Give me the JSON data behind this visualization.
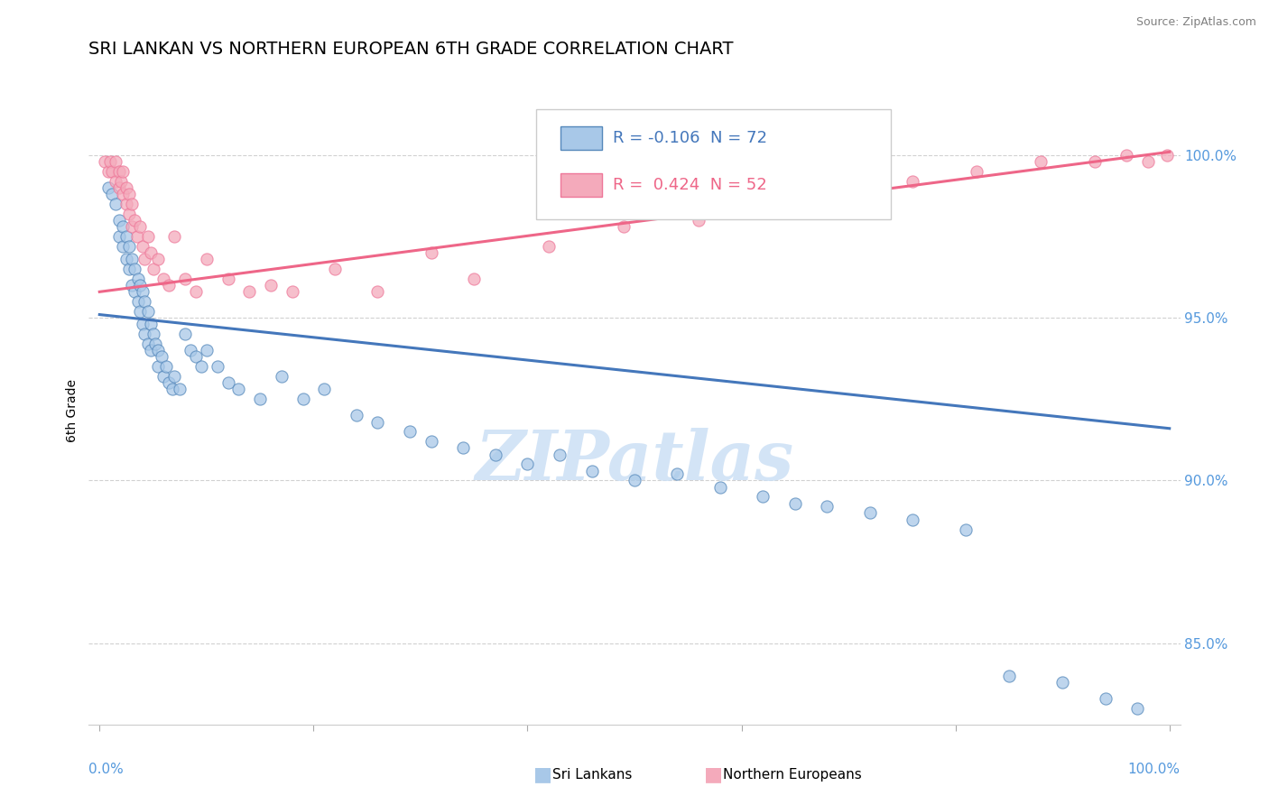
{
  "title": "SRI LANKAN VS NORTHERN EUROPEAN 6TH GRADE CORRELATION CHART",
  "source": "Source: ZipAtlas.com",
  "ylabel": "6th Grade",
  "ylim": [
    0.825,
    1.018
  ],
  "xlim": [
    -0.01,
    1.01
  ],
  "yticks": [
    0.85,
    0.9,
    0.95,
    1.0
  ],
  "ytick_labels": [
    "85.0%",
    "90.0%",
    "95.0%",
    "100.0%"
  ],
  "blue_R": "-0.106",
  "blue_N": "72",
  "pink_R": "0.424",
  "pink_N": "52",
  "blue_fill_color": "#A8C8E8",
  "pink_fill_color": "#F4AABB",
  "blue_edge_color": "#5588BB",
  "pink_edge_color": "#EE7799",
  "blue_line_color": "#4477BB",
  "pink_line_color": "#EE6688",
  "watermark": "ZIPatlas",
  "blue_line_x0": 0.0,
  "blue_line_x1": 1.0,
  "blue_line_y0": 0.951,
  "blue_line_y1": 0.916,
  "pink_line_x0": 0.0,
  "pink_line_x1": 1.0,
  "pink_line_y0": 0.958,
  "pink_line_y1": 1.001,
  "blue_scatter_x": [
    0.008,
    0.012,
    0.015,
    0.018,
    0.018,
    0.022,
    0.022,
    0.025,
    0.025,
    0.028,
    0.028,
    0.03,
    0.03,
    0.033,
    0.033,
    0.036,
    0.036,
    0.038,
    0.038,
    0.04,
    0.04,
    0.042,
    0.042,
    0.045,
    0.045,
    0.048,
    0.048,
    0.05,
    0.052,
    0.055,
    0.055,
    0.058,
    0.06,
    0.062,
    0.065,
    0.068,
    0.07,
    0.075,
    0.08,
    0.085,
    0.09,
    0.095,
    0.1,
    0.11,
    0.12,
    0.13,
    0.15,
    0.17,
    0.19,
    0.21,
    0.24,
    0.26,
    0.29,
    0.31,
    0.34,
    0.37,
    0.4,
    0.43,
    0.46,
    0.5,
    0.54,
    0.58,
    0.62,
    0.65,
    0.68,
    0.72,
    0.76,
    0.81,
    0.85,
    0.9,
    0.94,
    0.97
  ],
  "blue_scatter_y": [
    0.99,
    0.988,
    0.985,
    0.98,
    0.975,
    0.978,
    0.972,
    0.975,
    0.968,
    0.972,
    0.965,
    0.968,
    0.96,
    0.965,
    0.958,
    0.962,
    0.955,
    0.96,
    0.952,
    0.958,
    0.948,
    0.955,
    0.945,
    0.952,
    0.942,
    0.948,
    0.94,
    0.945,
    0.942,
    0.94,
    0.935,
    0.938,
    0.932,
    0.935,
    0.93,
    0.928,
    0.932,
    0.928,
    0.945,
    0.94,
    0.938,
    0.935,
    0.94,
    0.935,
    0.93,
    0.928,
    0.925,
    0.932,
    0.925,
    0.928,
    0.92,
    0.918,
    0.915,
    0.912,
    0.91,
    0.908,
    0.905,
    0.908,
    0.903,
    0.9,
    0.902,
    0.898,
    0.895,
    0.893,
    0.892,
    0.89,
    0.888,
    0.885,
    0.84,
    0.838,
    0.833,
    0.83
  ],
  "pink_scatter_x": [
    0.005,
    0.008,
    0.01,
    0.012,
    0.015,
    0.015,
    0.018,
    0.018,
    0.02,
    0.022,
    0.022,
    0.025,
    0.025,
    0.028,
    0.028,
    0.03,
    0.03,
    0.033,
    0.035,
    0.038,
    0.04,
    0.042,
    0.045,
    0.048,
    0.05,
    0.055,
    0.06,
    0.065,
    0.07,
    0.08,
    0.09,
    0.1,
    0.12,
    0.14,
    0.16,
    0.18,
    0.22,
    0.26,
    0.31,
    0.35,
    0.42,
    0.49,
    0.56,
    0.63,
    0.7,
    0.76,
    0.82,
    0.88,
    0.93,
    0.96,
    0.98,
    0.998
  ],
  "pink_scatter_y": [
    0.998,
    0.995,
    0.998,
    0.995,
    0.992,
    0.998,
    0.99,
    0.995,
    0.992,
    0.988,
    0.995,
    0.985,
    0.99,
    0.982,
    0.988,
    0.978,
    0.985,
    0.98,
    0.975,
    0.978,
    0.972,
    0.968,
    0.975,
    0.97,
    0.965,
    0.968,
    0.962,
    0.96,
    0.975,
    0.962,
    0.958,
    0.968,
    0.962,
    0.958,
    0.96,
    0.958,
    0.965,
    0.958,
    0.97,
    0.962,
    0.972,
    0.978,
    0.98,
    0.985,
    0.99,
    0.992,
    0.995,
    0.998,
    0.998,
    1.0,
    0.998,
    1.0
  ],
  "grid_color": "#CCCCCC",
  "bg_color": "#FFFFFF",
  "tick_color": "#5599DD",
  "title_fontsize": 14,
  "source_fontsize": 9,
  "tick_fontsize": 11,
  "legend_fontsize": 13,
  "marker_size": 90
}
